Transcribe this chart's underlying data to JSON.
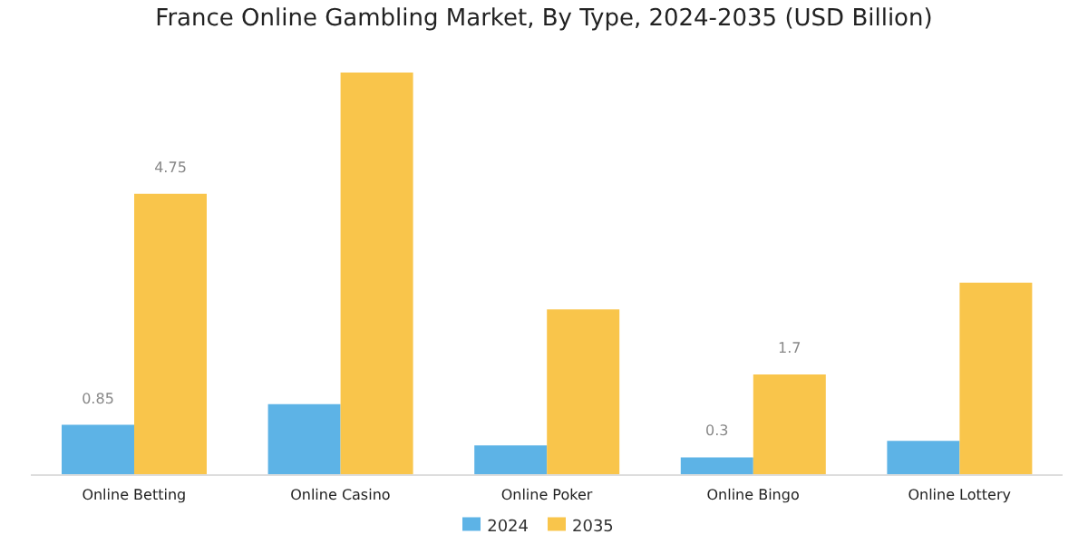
{
  "chart_data": {
    "type": "bar",
    "title": "France Online Gambling Market, By Type, 2024-2035 (USD Billion)",
    "categories": [
      "Online Betting",
      "Online Casino",
      "Online Poker",
      "Online Bingo",
      "Online Lottery"
    ],
    "series": [
      {
        "name": "2024",
        "color": "#5db3e6",
        "values": [
          0.85,
          1.2,
          0.5,
          0.3,
          0.58
        ],
        "value_labels": [
          "0.85",
          null,
          null,
          "0.3",
          null
        ]
      },
      {
        "name": "2035",
        "color": "#f9c54b",
        "values": [
          4.75,
          6.8,
          2.8,
          1.7,
          3.25
        ],
        "value_labels": [
          "4.75",
          null,
          null,
          "1.7",
          null
        ]
      }
    ],
    "legend": "bottom",
    "grid": false
  }
}
